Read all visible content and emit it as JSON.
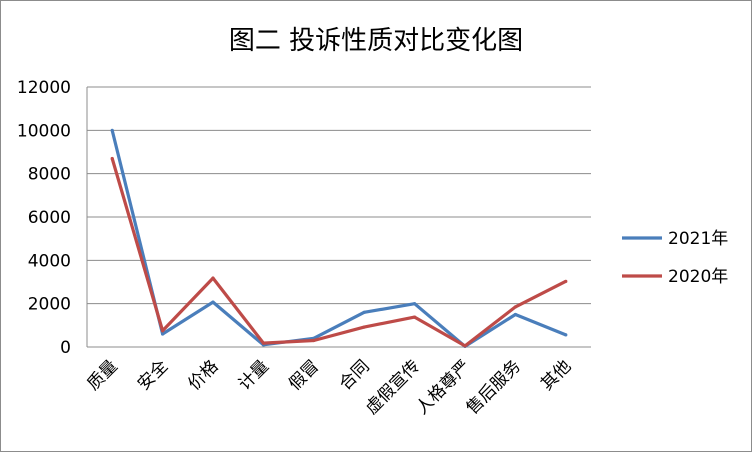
{
  "chart_data": {
    "type": "line",
    "title": "图二   投诉性质对比变化图",
    "categories": [
      "质量",
      "安全",
      "价格",
      "计量",
      "假冒",
      "合同",
      "虚假宣传",
      "人格尊严",
      "售后服务",
      "其他"
    ],
    "series": [
      {
        "name": "2021年",
        "color": "#4a7ebb",
        "values": [
          10000,
          600,
          2070,
          100,
          400,
          1600,
          2000,
          30,
          1500,
          560
        ]
      },
      {
        "name": "2020年",
        "color": "#be4b48",
        "values": [
          8700,
          750,
          3180,
          180,
          300,
          920,
          1380,
          50,
          1850,
          3030
        ]
      }
    ],
    "y_ticks": [
      "0",
      "2000",
      "4000",
      "6000",
      "8000",
      "10000",
      "12000"
    ],
    "ylim": [
      0,
      12000
    ],
    "grid": true,
    "legend_position": "right"
  }
}
